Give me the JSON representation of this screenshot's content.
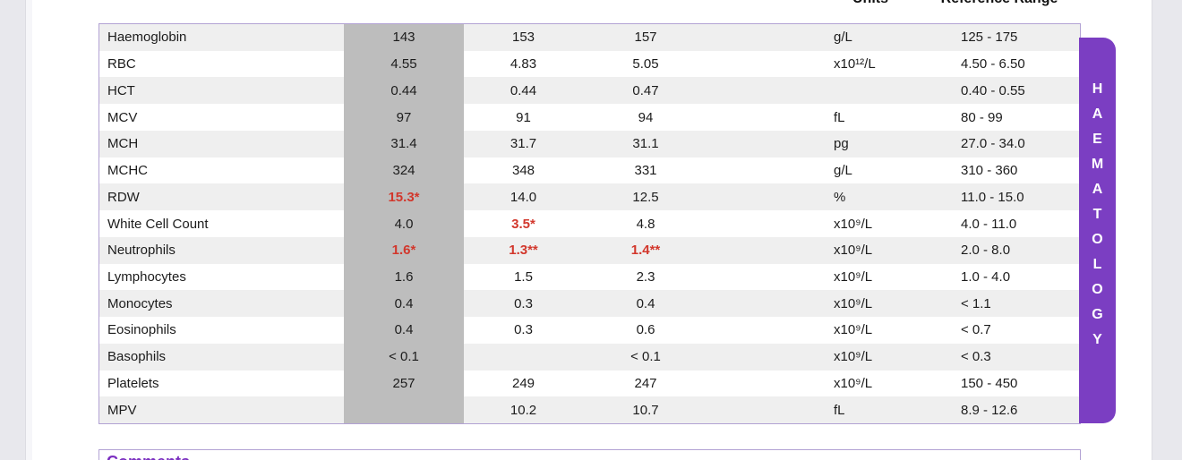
{
  "header": {
    "units_label": "Units",
    "reference_label": "Reference Range"
  },
  "section_tab": {
    "label": "HAEMATOLOGY",
    "color": "#7b3ec2"
  },
  "comments": {
    "title": "Comments"
  },
  "colors": {
    "abnormal_red": "#d2372c",
    "highlight_column_grey": "#bdbdbd",
    "row_stripe_grey": "#efefef",
    "table_border_purple": "#b2a2d4",
    "tab_purple": "#7b3ec2",
    "comments_title_purple": "#7b2fc0"
  },
  "table": {
    "rows": [
      {
        "name": "Haemoglobin",
        "v1": "143",
        "v2": "153",
        "v3": "157",
        "units": "g/L",
        "range": "125 - 175",
        "abnormal": []
      },
      {
        "name": "RBC",
        "v1": "4.55",
        "v2": "4.83",
        "v3": "5.05",
        "units": "x10¹²/L",
        "range": "4.50 - 6.50",
        "abnormal": []
      },
      {
        "name": "HCT",
        "v1": "0.44",
        "v2": "0.44",
        "v3": "0.47",
        "units": "",
        "range": "0.40 - 0.55",
        "abnormal": []
      },
      {
        "name": "MCV",
        "v1": "97",
        "v2": "91",
        "v3": "94",
        "units": "fL",
        "range": "80 - 99",
        "abnormal": []
      },
      {
        "name": "MCH",
        "v1": "31.4",
        "v2": "31.7",
        "v3": "31.1",
        "units": "pg",
        "range": "27.0 - 34.0",
        "abnormal": []
      },
      {
        "name": "MCHC",
        "v1": "324",
        "v2": "348",
        "v3": "331",
        "units": "g/L",
        "range": "310 - 360",
        "abnormal": []
      },
      {
        "name": "RDW",
        "v1": "15.3*",
        "v2": "14.0",
        "v3": "12.5",
        "units": "%",
        "range": "11.0 - 15.0",
        "abnormal": [
          "v1"
        ]
      },
      {
        "name": "White Cell Count",
        "v1": "4.0",
        "v2": "3.5*",
        "v3": "4.8",
        "units": "x10⁹/L",
        "range": "4.0 - 11.0",
        "abnormal": [
          "v2"
        ]
      },
      {
        "name": "Neutrophils",
        "v1": "1.6*",
        "v2": "1.3**",
        "v3": "1.4**",
        "units": "x10⁹/L",
        "range": "2.0 - 8.0",
        "abnormal": [
          "v1",
          "v2",
          "v3"
        ]
      },
      {
        "name": "Lymphocytes",
        "v1": "1.6",
        "v2": "1.5",
        "v3": "2.3",
        "units": "x10⁹/L",
        "range": "1.0 - 4.0",
        "abnormal": []
      },
      {
        "name": "Monocytes",
        "v1": "0.4",
        "v2": "0.3",
        "v3": "0.4",
        "units": "x10⁹/L",
        "range": "< 1.1",
        "abnormal": []
      },
      {
        "name": "Eosinophils",
        "v1": "0.4",
        "v2": "0.3",
        "v3": "0.6",
        "units": "x10⁹/L",
        "range": "< 0.7",
        "abnormal": []
      },
      {
        "name": "Basophils",
        "v1": "< 0.1",
        "v2": "",
        "v3": "< 0.1",
        "units": "x10⁹/L",
        "range": "< 0.3",
        "abnormal": []
      },
      {
        "name": "Platelets",
        "v1": "257",
        "v2": "249",
        "v3": "247",
        "units": "x10⁹/L",
        "range": "150 - 450",
        "abnormal": []
      },
      {
        "name": "MPV",
        "v1": "",
        "v2": "10.2",
        "v3": "10.7",
        "units": "fL",
        "range": "8.9 - 12.6",
        "abnormal": []
      }
    ]
  }
}
